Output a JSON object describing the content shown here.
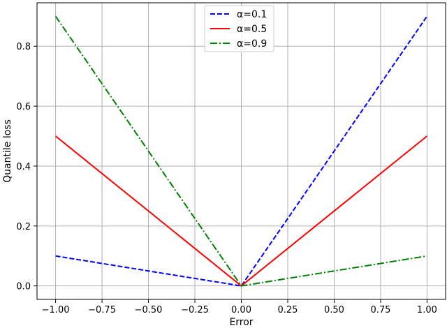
{
  "chart_data": {
    "type": "line",
    "xlabel": "Error",
    "ylabel": "Quantile loss",
    "xlim": [
      -1.1,
      1.1
    ],
    "ylim": [
      -0.045,
      0.945
    ],
    "xticks": [
      -1.0,
      -0.75,
      -0.5,
      -0.25,
      0.0,
      0.25,
      0.5,
      0.75,
      1.0
    ],
    "xtick_labels": [
      "−1.00",
      "−0.75",
      "−0.50",
      "−0.25",
      "0.00",
      "0.25",
      "0.50",
      "0.75",
      "1.00"
    ],
    "yticks": [
      0.0,
      0.2,
      0.4,
      0.6,
      0.8
    ],
    "ytick_labels": [
      "0.0",
      "0.2",
      "0.4",
      "0.6",
      "0.8"
    ],
    "grid": true,
    "legend_position": "top-center",
    "x": [
      -1.0,
      0.0,
      1.0
    ],
    "series": [
      {
        "name": "α=0.1",
        "values": [
          0.1,
          0.0,
          0.9
        ],
        "color": "#0000ff",
        "style": "dashed"
      },
      {
        "name": "α=0.5",
        "values": [
          0.5,
          0.0,
          0.5
        ],
        "color": "#ff0000",
        "style": "solid"
      },
      {
        "name": "α=0.9",
        "values": [
          0.9,
          0.0,
          0.1
        ],
        "color": "#008000",
        "style": "dashdot"
      }
    ]
  }
}
